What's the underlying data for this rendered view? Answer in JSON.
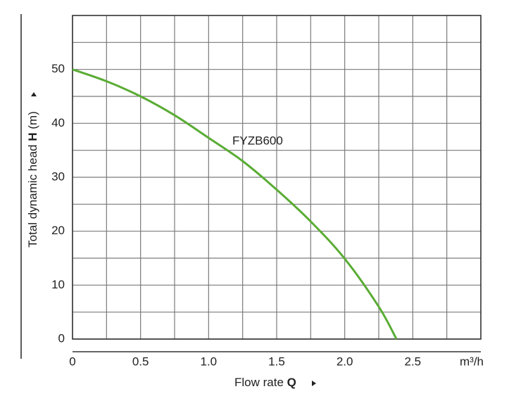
{
  "chart_data": {
    "type": "line",
    "xlabel": [
      "Flow rate",
      "Q"
    ],
    "ylabel": [
      "Total dynamic head",
      "H",
      "(m)"
    ],
    "xunit": "m³/h",
    "x": [
      0,
      0.25,
      0.5,
      0.75,
      1.0,
      1.25,
      1.5,
      1.75,
      2.0,
      2.25,
      2.38
    ],
    "series": [
      {
        "name": "FYZB600",
        "color": "#5aac34",
        "values": [
          50,
          47.8,
          45,
          41.5,
          37.3,
          33,
          27.7,
          21.8,
          14.9,
          6,
          0
        ]
      }
    ],
    "xlim": [
      0,
      3.0
    ],
    "ylim": [
      0,
      60
    ],
    "xticks": [
      0,
      0.5,
      {
        "value": 1.0,
        "label": "1.0"
      },
      1.5,
      {
        "value": 2.0,
        "label": "2.0"
      },
      2.5
    ],
    "yticks": [
      0,
      10,
      20,
      30,
      40,
      50
    ],
    "x_minor_grid": [
      0.25,
      0.75,
      1.25,
      1.75,
      2.25,
      2.75
    ],
    "y_minor_grid": [
      5,
      15,
      25,
      35,
      45,
      55
    ],
    "grid": true
  }
}
